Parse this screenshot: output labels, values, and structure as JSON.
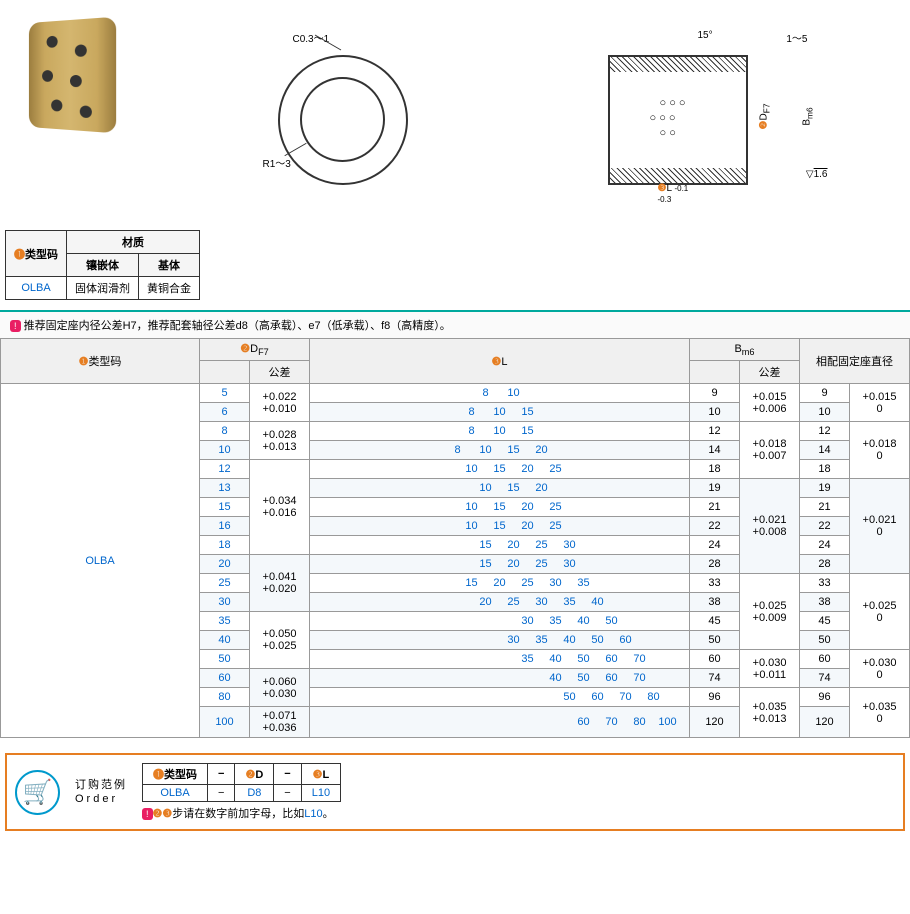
{
  "material": {
    "header": "材质",
    "typeCodeLabel": "类型码",
    "col1": "镶嵌体",
    "col2": "基体",
    "typeCode": "OLBA",
    "val1": "固体润滑剂",
    "val2": "黄铜合金"
  },
  "diagram": {
    "c_label": "C0.3～1",
    "r_label": "R1～3",
    "angle": "15°",
    "top_dim": "1～5",
    "d_label": "D",
    "d_sub": "F7",
    "b_label": "B",
    "b_sub": "m6",
    "l_label": "L",
    "l_tol": "-0.1\n-0.3",
    "surf": "1.6"
  },
  "note": "推荐固定座内径公差H7，推荐配套轴径公差d8（高承载）、e7（低承载）、f8（高精度）。",
  "headers": {
    "typeCode": "类型码",
    "d": "D",
    "d_sub": "F7",
    "l": "L",
    "b": "B",
    "b_sub": "m6",
    "tolerance": "公差",
    "seatDiam": "相配固定座直径"
  },
  "typeCode": "OLBA",
  "rows": [
    {
      "d": "5",
      "dt": "+0.022\n+0.010",
      "dtspan": 2,
      "l": [
        "8",
        "10"
      ],
      "b": "9",
      "bt": "+0.015\n+0.006",
      "btspan": 2,
      "s": "9",
      "st": "+0.015\n0",
      "stspan": 2
    },
    {
      "d": "6",
      "l": [
        "8",
        "10",
        "15"
      ],
      "b": "10",
      "s": "10",
      "alt": 1
    },
    {
      "d": "8",
      "dt": "+0.028\n+0.013",
      "dtspan": 2,
      "l": [
        "8",
        "10",
        "15"
      ],
      "b": "12",
      "bt": "+0.018\n+0.007",
      "btspan": 3,
      "s": "12",
      "st": "+0.018\n0",
      "stspan": 3
    },
    {
      "d": "10",
      "l": [
        "8",
        "10",
        "15",
        "20"
      ],
      "b": "14",
      "s": "14",
      "alt": 1
    },
    {
      "d": "12",
      "dt": "+0.034\n+0.016",
      "dtspan": 5,
      "l": [
        "",
        "10",
        "15",
        "20",
        "25"
      ],
      "b": "18",
      "s": "18"
    },
    {
      "d": "13",
      "l": [
        "",
        "10",
        "15",
        "20"
      ],
      "b": "19",
      "bt": "+0.021\n+0.008",
      "btspan": 5,
      "s": "19",
      "st": "+0.021\n0",
      "stspan": 5,
      "alt": 1
    },
    {
      "d": "15",
      "l": [
        "",
        "10",
        "15",
        "20",
        "25"
      ],
      "b": "21",
      "s": "21"
    },
    {
      "d": "16",
      "l": [
        "",
        "10",
        "15",
        "20",
        "25"
      ],
      "b": "22",
      "s": "22",
      "alt": 1
    },
    {
      "d": "18",
      "l": [
        "",
        "",
        "15",
        "20",
        "25",
        "30"
      ],
      "b": "24",
      "s": "24"
    },
    {
      "d": "20",
      "dt": "+0.041\n+0.020",
      "dtspan": 3,
      "l": [
        "",
        "",
        "15",
        "20",
        "25",
        "30"
      ],
      "b": "28",
      "s": "28",
      "alt": 1
    },
    {
      "d": "25",
      "l": [
        "",
        "",
        "15",
        "20",
        "25",
        "30",
        "35"
      ],
      "b": "33",
      "bt": "+0.025\n+0.009",
      "btspan": 4,
      "s": "33",
      "st": "+0.025\n0",
      "stspan": 4
    },
    {
      "d": "30",
      "l": [
        "",
        "",
        "",
        "20",
        "25",
        "30",
        "35",
        "40"
      ],
      "b": "38",
      "s": "38",
      "alt": 1
    },
    {
      "d": "35",
      "dt": "+0.050\n+0.025",
      "dtspan": 3,
      "l": [
        "",
        "",
        "",
        "",
        "",
        "30",
        "35",
        "40",
        "50"
      ],
      "b": "45",
      "s": "45"
    },
    {
      "d": "40",
      "l": [
        "",
        "",
        "",
        "",
        "",
        "30",
        "35",
        "40",
        "50",
        "60"
      ],
      "b": "50",
      "s": "50",
      "alt": 1
    },
    {
      "d": "50",
      "l": [
        "",
        "",
        "",
        "",
        "",
        "",
        "35",
        "40",
        "50",
        "60",
        "70"
      ],
      "b": "60",
      "bt": "+0.030\n+0.011",
      "btspan": 2,
      "s": "60",
      "st": "+0.030\n0",
      "stspan": 2
    },
    {
      "d": "60",
      "dt": "+0.060\n+0.030",
      "dtspan": 2,
      "l": [
        "",
        "",
        "",
        "",
        "",
        "",
        "",
        "40",
        "50",
        "60",
        "70"
      ],
      "b": "74",
      "s": "74",
      "alt": 1
    },
    {
      "d": "80",
      "l": [
        "",
        "",
        "",
        "",
        "",
        "",
        "",
        "",
        "50",
        "60",
        "70",
        "80"
      ],
      "b": "96",
      "bt": "+0.035\n+0.013",
      "btspan": 2,
      "s": "96",
      "st": "+0.035\n0",
      "stspan": 2
    },
    {
      "d": "100",
      "dt": "+0.071\n+0.036",
      "dtspan": 1,
      "l": [
        "",
        "",
        "",
        "",
        "",
        "",
        "",
        "",
        "",
        "60",
        "70",
        "80",
        "100"
      ],
      "b": "120",
      "s": "120",
      "alt": 1
    }
  ],
  "order": {
    "title1": "订购范例",
    "title2": "Order",
    "h1": "类型码",
    "h2": "D",
    "h3": "L",
    "v1": "OLBA",
    "v2": "D8",
    "v3": "L10",
    "note": "步请在数字前加字母，比如",
    "example": "L10"
  }
}
